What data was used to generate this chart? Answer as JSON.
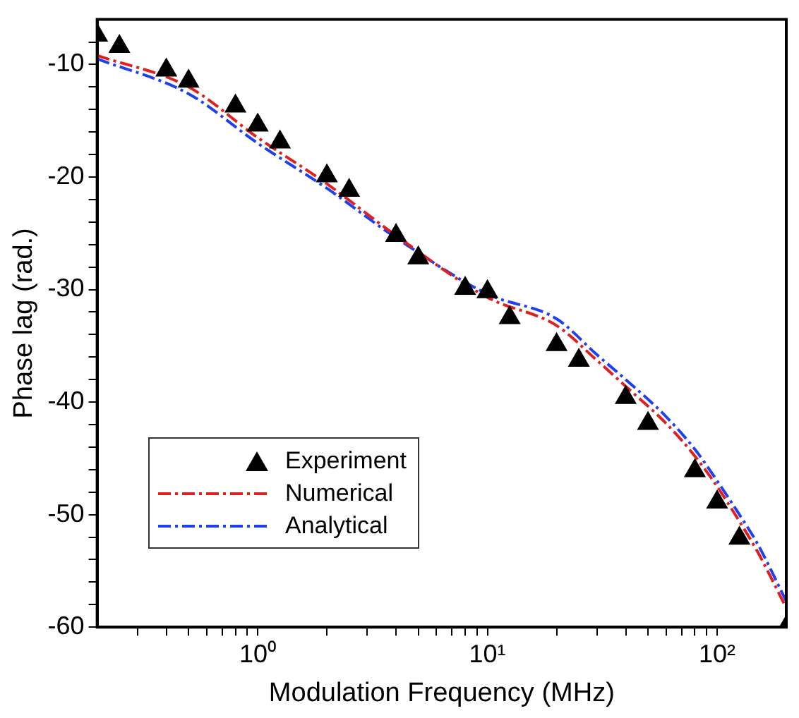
{
  "chart_data": {
    "type": "scatter",
    "xlabel": "Modulation Frequency (MHz)",
    "ylabel": "Phase lag (rad.)",
    "log": "x",
    "xlim": [
      0.2,
      200
    ],
    "ylim": [
      -60,
      -6
    ],
    "xticks": [
      {
        "value": 0.3,
        "label": null
      },
      {
        "value": 0.4,
        "label": null
      },
      {
        "value": 0.5,
        "label": null
      },
      {
        "value": 0.6,
        "label": null
      },
      {
        "value": 0.7,
        "label": null
      },
      {
        "value": 0.8,
        "label": null
      },
      {
        "value": 0.9,
        "label": null
      },
      {
        "value": 1,
        "label": "10⁰"
      },
      {
        "value": 2,
        "label": null
      },
      {
        "value": 3,
        "label": null
      },
      {
        "value": 4,
        "label": null
      },
      {
        "value": 5,
        "label": null
      },
      {
        "value": 6,
        "label": null
      },
      {
        "value": 7,
        "label": null
      },
      {
        "value": 8,
        "label": null
      },
      {
        "value": 9,
        "label": null
      },
      {
        "value": 10,
        "label": "10¹"
      },
      {
        "value": 20,
        "label": null
      },
      {
        "value": 30,
        "label": null
      },
      {
        "value": 40,
        "label": null
      },
      {
        "value": 50,
        "label": null
      },
      {
        "value": 60,
        "label": null
      },
      {
        "value": 70,
        "label": null
      },
      {
        "value": 80,
        "label": null
      },
      {
        "value": 90,
        "label": null
      },
      {
        "value": 100,
        "label": "10²"
      }
    ],
    "yticks": [
      -60,
      {
        "value": -58,
        "label": null
      },
      {
        "value": -56,
        "label": null
      },
      {
        "value": -54,
        "label": null
      },
      {
        "value": -52,
        "label": null
      },
      -50,
      {
        "value": -48,
        "label": null
      },
      {
        "value": -46,
        "label": null
      },
      {
        "value": -44,
        "label": null
      },
      {
        "value": -42,
        "label": null
      },
      -40,
      {
        "value": -38,
        "label": null
      },
      {
        "value": -36,
        "label": null
      },
      {
        "value": -34,
        "label": null
      },
      {
        "value": -32,
        "label": null
      },
      -30,
      {
        "value": -28,
        "label": null
      },
      {
        "value": -26,
        "label": null
      },
      {
        "value": -24,
        "label": null
      },
      {
        "value": -22,
        "label": null
      },
      -20,
      {
        "value": -18,
        "label": null
      },
      {
        "value": -16,
        "label": null
      },
      {
        "value": -14,
        "label": null
      },
      {
        "value": -12,
        "label": null
      },
      -10,
      {
        "value": -8,
        "label": null
      }
    ],
    "grid": false,
    "legend": "bottom left",
    "series": [
      {
        "name": "Experiment",
        "marker": "triangle",
        "color": "#000000",
        "x": [
          0.2,
          0.25,
          0.4,
          0.5,
          0.8,
          1,
          1.25,
          2,
          2.5,
          4,
          5,
          8,
          10,
          12.5,
          20,
          25,
          40,
          50,
          80,
          100,
          125,
          200
        ],
        "values": [
          -7.4,
          -8.4,
          -10.5,
          -11.5,
          -13.7,
          -15.4,
          -16.9,
          -19.9,
          -21.2,
          -25.2,
          -27.2,
          -29.9,
          -30.2,
          -32.5,
          -34.9,
          -36.3,
          -39.6,
          -41.9,
          -46.1,
          -48.9,
          -52.1,
          -60
        ]
      },
      {
        "name": "Numerical",
        "type": "line",
        "marker": "none",
        "line_style": "dashed",
        "color": "#e02020",
        "x": [
          0.2,
          0.5,
          1,
          2,
          4,
          10,
          20,
          30,
          40,
          60,
          80,
          100,
          125,
          150,
          200
        ],
        "values": [
          -9.2,
          -12,
          -16.5,
          -20.6,
          -25.2,
          -30.7,
          -33.2,
          -36.3,
          -38.6,
          -41.9,
          -44.8,
          -47.5,
          -50.6,
          -53.3,
          -58.3
        ]
      },
      {
        "name": "Analytical",
        "type": "line",
        "marker": "none",
        "line_style": "dashed",
        "color": "#2040f0",
        "x": [
          0.2,
          0.5,
          1,
          2,
          4,
          10,
          20,
          30,
          40,
          60,
          80,
          100,
          125,
          150,
          200
        ],
        "values": [
          -9.5,
          -12.6,
          -17,
          -21,
          -25.4,
          -30.4,
          -32.6,
          -35.8,
          -38,
          -41.3,
          -44.2,
          -47,
          -50,
          -52.6,
          -57.7
        ]
      }
    ]
  }
}
